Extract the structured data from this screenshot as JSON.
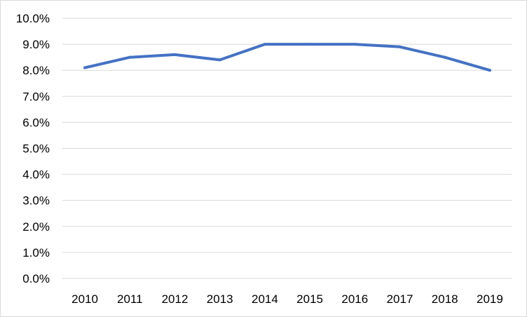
{
  "chart_data": {
    "type": "line",
    "title": "",
    "xlabel": "",
    "ylabel": "",
    "categories": [
      "2010",
      "2011",
      "2012",
      "2013",
      "2014",
      "2015",
      "2016",
      "2017",
      "2018",
      "2019"
    ],
    "series": [
      {
        "values": [
          8.1,
          8.5,
          8.6,
          8.4,
          9.0,
          9.0,
          9.0,
          8.9,
          8.5,
          8.0
        ],
        "color": "#4472C4"
      }
    ],
    "ylim": [
      0,
      10
    ],
    "yticks": [
      "0.0%",
      "1.0%",
      "2.0%",
      "3.0%",
      "4.0%",
      "5.0%",
      "6.0%",
      "7.0%",
      "8.0%",
      "9.0%",
      "10.0%"
    ],
    "grid": true,
    "legend": "none"
  }
}
